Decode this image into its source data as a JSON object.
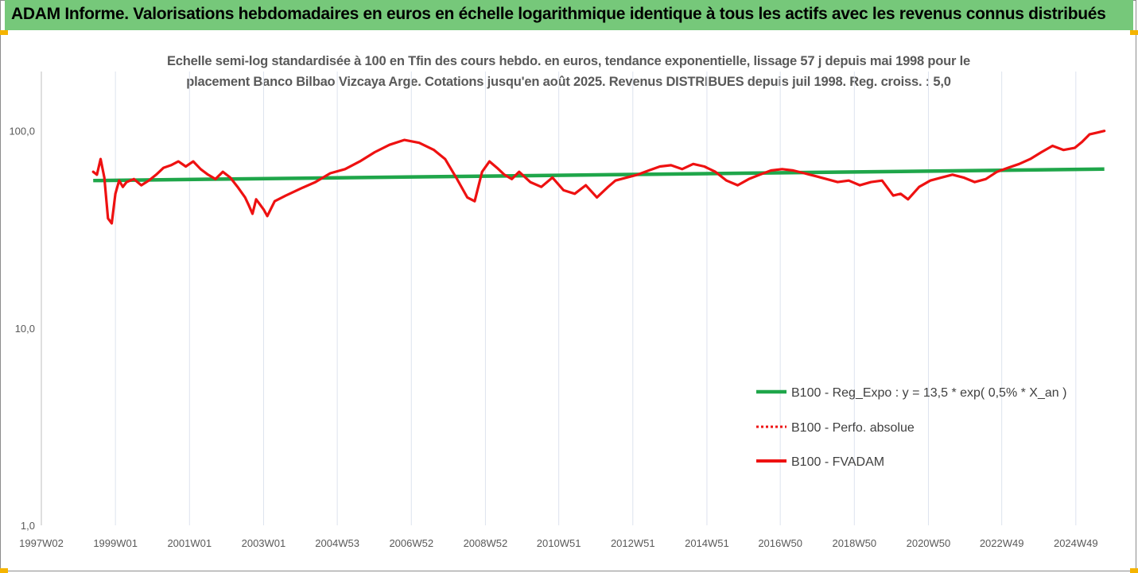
{
  "header": {
    "title": "ADAM Informe. Valorisations hebdomadaires en euros en échelle logarithmique identique à tous les actifs avec les revenus connus distribués"
  },
  "colors": {
    "header_bg": "#76c87a",
    "accent_corner": "#f5b400",
    "trend": "#1fa64a",
    "fvadam": "#ee1111",
    "perfo": "#ee1111",
    "grid": "#dde3ee",
    "axis": "#bfbfbf"
  },
  "chart_data": {
    "type": "line",
    "title_line1": "Echelle semi-log standardisée à 100 en Tfin des cours hebdo. en euros, tendance exponentielle, lissage 57 j depuis mai 1998 pour le",
    "title_line2": "placement Banco Bilbao Vizcaya Arge. Cotations jusqu'en août 2025. Revenus DISTRIBUES depuis juil 1998. Reg. croiss. : 5,0",
    "y_scale": "log",
    "ylim": [
      1,
      200
    ],
    "y_ticks": [
      {
        "value": 1,
        "label": "1,0"
      },
      {
        "value": 10,
        "label": "10,0"
      },
      {
        "value": 100,
        "label": "100,0"
      }
    ],
    "xlim": [
      1997.0,
      2025.75
    ],
    "x_ticks": [
      {
        "value": 1997.0,
        "label": "1997W02"
      },
      {
        "value": 1999.0,
        "label": "1999W01"
      },
      {
        "value": 2001.0,
        "label": "2001W01"
      },
      {
        "value": 2003.0,
        "label": "2003W01"
      },
      {
        "value": 2004.99,
        "label": "2004W53"
      },
      {
        "value": 2006.99,
        "label": "2006W52"
      },
      {
        "value": 2008.99,
        "label": "2008W52"
      },
      {
        "value": 2010.97,
        "label": "2010W51"
      },
      {
        "value": 2012.97,
        "label": "2012W51"
      },
      {
        "value": 2014.97,
        "label": "2014W51"
      },
      {
        "value": 2016.95,
        "label": "2016W50"
      },
      {
        "value": 2018.95,
        "label": "2018W50"
      },
      {
        "value": 2020.95,
        "label": "2020W50"
      },
      {
        "value": 2022.93,
        "label": "2022W49"
      },
      {
        "value": 2024.93,
        "label": "2024W49"
      }
    ],
    "grid": "vertical",
    "legend_position": "right",
    "legend": [
      {
        "label": "B100 - Reg_Expo : y = 13,5 * exp( 0,5% *  X_an )",
        "style": "solid-green"
      },
      {
        "label": "B100 - Perfo. absolue",
        "style": "dotted-red"
      },
      {
        "label": "B100 - FVADAM",
        "style": "solid-red"
      }
    ],
    "series": [
      {
        "name": "B100 - Reg_Expo : y = 13,5 * exp( 0,5% *  X_an )",
        "x": [
          1998.4,
          2025.7
        ],
        "y": [
          56,
          64
        ]
      },
      {
        "name": "B100 - FVADAM",
        "x": [
          1998.4,
          1998.5,
          1998.6,
          1998.7,
          1998.8,
          1998.9,
          1999.0,
          1999.1,
          1999.2,
          1999.3,
          1999.5,
          1999.7,
          1999.9,
          2000.1,
          2000.3,
          2000.5,
          2000.7,
          2000.9,
          2001.1,
          2001.3,
          2001.5,
          2001.7,
          2001.9,
          2002.1,
          2002.3,
          2002.5,
          2002.6,
          2002.7,
          2002.8,
          2003.0,
          2003.1,
          2003.3,
          2003.6,
          2004.0,
          2004.4,
          2004.8,
          2005.2,
          2005.6,
          2006.0,
          2006.4,
          2006.8,
          2007.2,
          2007.6,
          2007.9,
          2008.2,
          2008.5,
          2008.7,
          2008.9,
          2009.1,
          2009.3,
          2009.5,
          2009.7,
          2009.9,
          2010.2,
          2010.5,
          2010.8,
          2011.1,
          2011.4,
          2011.7,
          2012.0,
          2012.3,
          2012.5,
          2012.8,
          2013.1,
          2013.4,
          2013.7,
          2014.0,
          2014.3,
          2014.6,
          2014.9,
          2015.2,
          2015.5,
          2015.8,
          2016.1,
          2016.4,
          2016.7,
          2017.0,
          2017.3,
          2017.6,
          2017.9,
          2018.2,
          2018.5,
          2018.8,
          2019.1,
          2019.4,
          2019.7,
          2020.0,
          2020.2,
          2020.4,
          2020.7,
          2021.0,
          2021.3,
          2021.6,
          2021.9,
          2022.2,
          2022.5,
          2022.8,
          2023.1,
          2023.4,
          2023.7,
          2024.0,
          2024.3,
          2024.6,
          2024.9,
          2025.1,
          2025.3,
          2025.5,
          2025.7
        ],
        "y": [
          62,
          60,
          72,
          58,
          36,
          34,
          48,
          56,
          52,
          55,
          57,
          53,
          56,
          60,
          65,
          67,
          70,
          66,
          70,
          64,
          60,
          57,
          62,
          58,
          52,
          46,
          42,
          38,
          45,
          40,
          37,
          44,
          47,
          51,
          55,
          61,
          64,
          70,
          78,
          85,
          90,
          87,
          80,
          72,
          58,
          46,
          44,
          62,
          70,
          65,
          60,
          57,
          62,
          55,
          52,
          58,
          50,
          48,
          53,
          46,
          52,
          56,
          58,
          60,
          63,
          66,
          67,
          64,
          68,
          66,
          62,
          56,
          53,
          57,
          60,
          63,
          64,
          63,
          61,
          59,
          57,
          55,
          56,
          53,
          55,
          56,
          47,
          48,
          45,
          52,
          56,
          58,
          60,
          58,
          55,
          57,
          62,
          65,
          68,
          72,
          78,
          84,
          80,
          82,
          88,
          96,
          98,
          100
        ]
      }
    ]
  }
}
